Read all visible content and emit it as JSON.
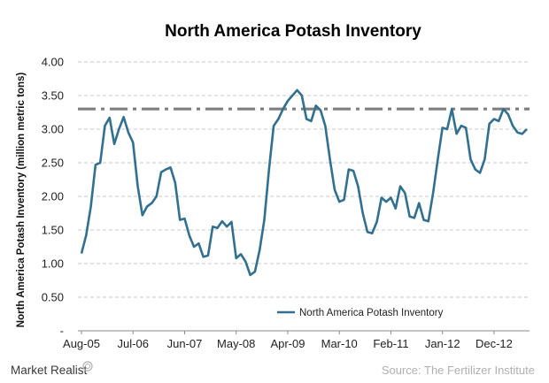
{
  "brand": {
    "name": "Market Realist",
    "logo_icon": "market-realist-logo-icon"
  },
  "source": "Source: The Fertilizer Institute",
  "chart_data": {
    "type": "line",
    "title": "North America Potash Inventory",
    "ylabel": "North America Potash Inventory (million metric tons)",
    "xlabel": "",
    "ylim": [
      0,
      4
    ],
    "grid": true,
    "legend_position": "bottom-center",
    "x_tick_labels": [
      "Aug-05",
      "Jul-06",
      "Jun-07",
      "May-08",
      "Apr-09",
      "Mar-10",
      "Feb-11",
      "Jan-12",
      "Dec-12"
    ],
    "y_tick_labels": [
      "-",
      "0.50",
      "1.00",
      "1.50",
      "2.00",
      "2.50",
      "3.00",
      "3.50",
      "4.00"
    ],
    "y_tick_values": [
      0,
      0.5,
      1,
      1.5,
      2,
      2.5,
      3,
      3.5,
      4
    ],
    "reference_line": {
      "value": 3.3,
      "style": "dash-dot",
      "color": "#7f7f7f"
    },
    "series": [
      {
        "name": "North America Potash Inventory",
        "color": "#31708f",
        "values": [
          1.15,
          1.42,
          1.85,
          2.47,
          2.5,
          3.05,
          3.17,
          2.78,
          3.0,
          3.18,
          2.95,
          2.8,
          2.15,
          1.72,
          1.85,
          1.9,
          2.0,
          2.36,
          2.4,
          2.43,
          2.2,
          1.65,
          1.67,
          1.42,
          1.25,
          1.3,
          1.1,
          1.12,
          1.55,
          1.53,
          1.63,
          1.55,
          1.62,
          1.08,
          1.14,
          1.03,
          0.83,
          0.88,
          1.2,
          1.65,
          2.4,
          3.05,
          3.15,
          3.3,
          3.42,
          3.5,
          3.58,
          3.5,
          3.15,
          3.12,
          3.35,
          3.28,
          3.05,
          2.55,
          2.1,
          1.92,
          1.95,
          2.4,
          2.38,
          2.15,
          1.75,
          1.47,
          1.45,
          1.62,
          1.98,
          1.92,
          1.98,
          1.82,
          2.15,
          2.05,
          1.7,
          1.68,
          1.9,
          1.65,
          1.63,
          2.05,
          2.55,
          3.02,
          3.0,
          3.3,
          2.93,
          3.05,
          3.02,
          2.55,
          2.4,
          2.35,
          2.55,
          3.08,
          3.15,
          3.12,
          3.3,
          3.22,
          3.05,
          2.95,
          2.93,
          3.0
        ]
      }
    ]
  }
}
